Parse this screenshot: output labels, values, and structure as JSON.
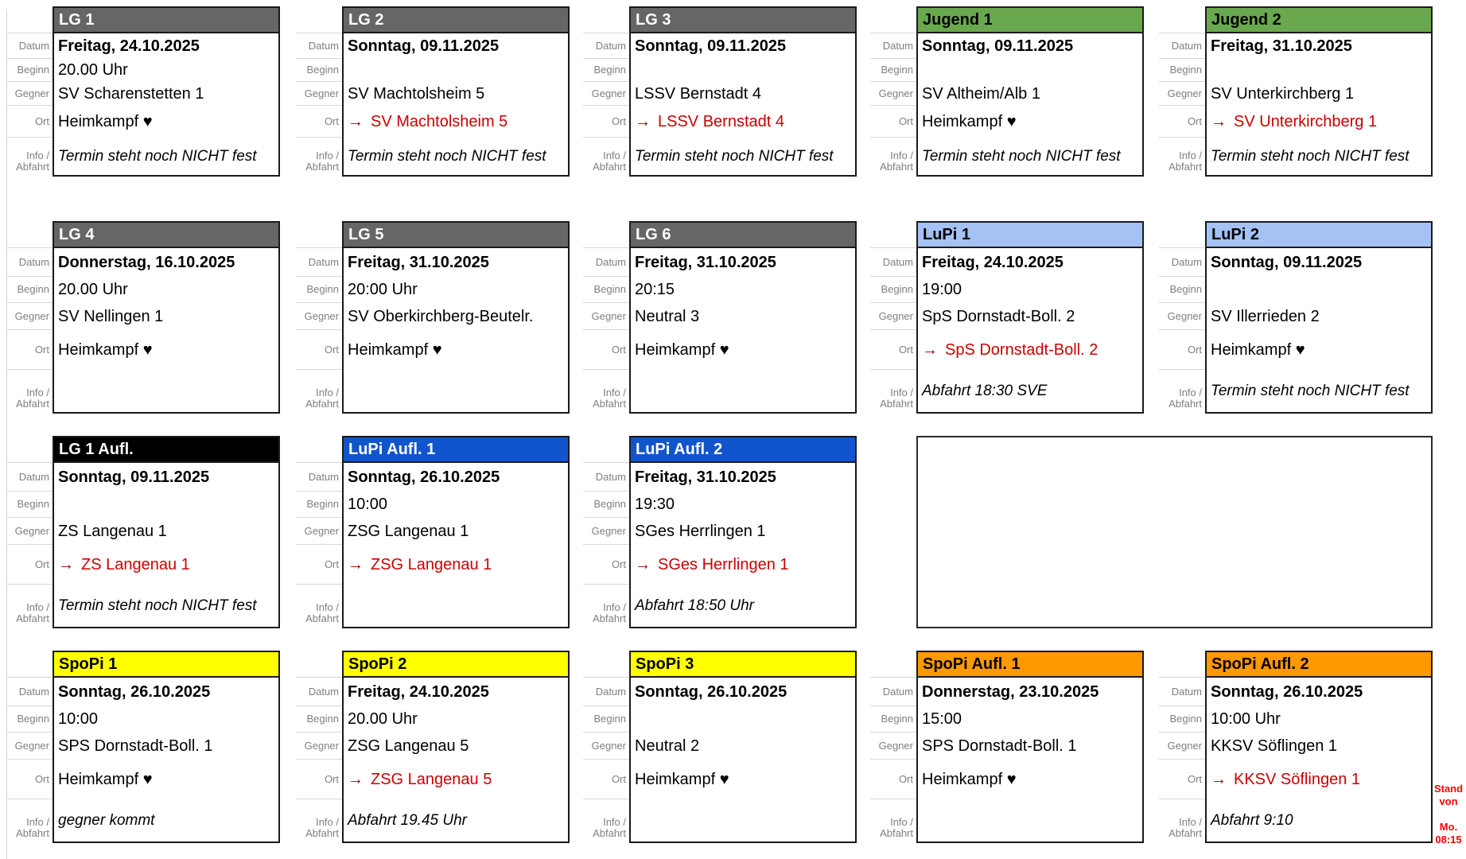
{
  "sheet": {
    "background": "#ffffff",
    "gridline_color": "#d4d4d4"
  },
  "labels": {
    "datum": "Datum",
    "beginn": "Beginn",
    "gegner": "Gegner",
    "ort": "Ort",
    "info_line1": "Info /",
    "info_line2": "Abfahrt"
  },
  "icons": {
    "away_arrow": "→",
    "home_heart": "♥"
  },
  "colors": {
    "away_text": "#cc0000",
    "away_arrow": "#990000",
    "stand_note": "#ff0000",
    "card_border": "#1a1a1a"
  },
  "header_styles": {
    "gray": {
      "bg": "#666666",
      "fg": "#ffffff"
    },
    "green": {
      "bg": "#6aa84f",
      "fg": "#000000"
    },
    "lightblue": {
      "bg": "#a4c2f4",
      "fg": "#000000"
    },
    "blue": {
      "bg": "#1155cc",
      "fg": "#ffffff"
    },
    "black": {
      "bg": "#000000",
      "fg": "#ffffff"
    },
    "yellow": {
      "bg": "#ffff00",
      "fg": "#000000"
    },
    "orange": {
      "bg": "#ff9900",
      "fg": "#000000"
    }
  },
  "stand_note": "Stand\nvon\n\nMo.\n08:15",
  "cards": [
    {
      "type": "match",
      "row": 0,
      "col": 0,
      "style": "gray",
      "title": "LG 1",
      "datum": "Freitag, 24.10.2025",
      "beginn": "20.00 Uhr",
      "gegner": "SV Scharenstetten 1",
      "ort": "Heimkampf ♥",
      "away": false,
      "info": "Termin steht noch NICHT fest"
    },
    {
      "type": "match",
      "row": 0,
      "col": 1,
      "style": "gray",
      "title": "LG 2",
      "datum": "Sonntag, 09.11.2025",
      "beginn": "",
      "gegner": "SV Machtolsheim 5",
      "ort": "SV Machtolsheim 5",
      "away": true,
      "info": "Termin steht noch NICHT fest"
    },
    {
      "type": "match",
      "row": 0,
      "col": 2,
      "style": "gray",
      "title": "LG 3",
      "datum": "Sonntag, 09.11.2025",
      "beginn": "",
      "gegner": "LSSV Bernstadt 4",
      "ort": "LSSV Bernstadt 4",
      "away": true,
      "info": "Termin steht noch NICHT fest"
    },
    {
      "type": "match",
      "row": 0,
      "col": 3,
      "style": "green",
      "title": "Jugend 1",
      "datum": "Sonntag, 09.11.2025",
      "beginn": "",
      "gegner": "SV Altheim/Alb 1",
      "ort": "Heimkampf ♥",
      "away": false,
      "info": "Termin steht noch NICHT fest"
    },
    {
      "type": "match",
      "row": 0,
      "col": 4,
      "style": "green",
      "title": "Jugend 2",
      "datum": "Freitag, 31.10.2025",
      "beginn": "",
      "gegner": "SV Unterkirchberg 1",
      "ort": "SV Unterkirchberg 1",
      "away": true,
      "info": "Termin steht noch NICHT fest"
    },
    {
      "type": "match",
      "row": 1,
      "col": 0,
      "style": "gray",
      "title": "LG 4",
      "datum": "Donnerstag, 16.10.2025",
      "beginn": "20.00 Uhr",
      "gegner": "SV Nellingen 1",
      "ort": "Heimkampf ♥",
      "away": false,
      "info": ""
    },
    {
      "type": "match",
      "row": 1,
      "col": 1,
      "style": "gray",
      "title": "LG 5",
      "datum": "Freitag, 31.10.2025",
      "beginn": "20:00 Uhr",
      "gegner": "SV Oberkirchberg-Beutelr.",
      "ort": "Heimkampf ♥",
      "away": false,
      "info": ""
    },
    {
      "type": "match",
      "row": 1,
      "col": 2,
      "style": "gray",
      "title": "LG 6",
      "datum": "Freitag, 31.10.2025",
      "beginn": "20:15",
      "gegner": "Neutral 3",
      "ort": "Heimkampf ♥",
      "away": false,
      "info": ""
    },
    {
      "type": "match",
      "row": 1,
      "col": 3,
      "style": "lightblue",
      "title": "LuPi 1",
      "datum": "Freitag, 24.10.2025",
      "beginn": "19:00",
      "gegner": "SpS Dornstadt-Boll. 2",
      "ort": "SpS Dornstadt-Boll. 2",
      "away": true,
      "info": "Abfahrt 18:30 SVE"
    },
    {
      "type": "match",
      "row": 1,
      "col": 4,
      "style": "lightblue",
      "title": "LuPi 2",
      "datum": "Sonntag, 09.11.2025",
      "beginn": "",
      "gegner": "SV Illerrieden 2",
      "ort": "Heimkampf ♥",
      "away": false,
      "info": "Termin steht noch NICHT fest"
    },
    {
      "type": "match",
      "row": 2,
      "col": 0,
      "style": "black",
      "title": "LG 1 Aufl.",
      "datum": "Sonntag, 09.11.2025",
      "beginn": "",
      "gegner": "ZS Langenau 1",
      "ort": "ZS Langenau 1",
      "away": true,
      "info": "Termin steht noch NICHT fest"
    },
    {
      "type": "match",
      "row": 2,
      "col": 1,
      "style": "blue",
      "title": "LuPi Aufl. 1",
      "datum": "Sonntag, 26.10.2025",
      "beginn": "10:00",
      "gegner": "ZSG Langenau 1",
      "ort": "ZSG Langenau 1",
      "away": true,
      "info": ""
    },
    {
      "type": "match",
      "row": 2,
      "col": 2,
      "style": "blue",
      "title": "LuPi Aufl. 2",
      "datum": "Freitag, 31.10.2025",
      "beginn": "19:30",
      "gegner": "SGes Herrlingen 1",
      "ort": "SGes Herrlingen 1",
      "away": true,
      "info": "Abfahrt 18:50 Uhr"
    },
    {
      "type": "empty",
      "row": 2,
      "col": 3,
      "span": 2
    },
    {
      "type": "match",
      "row": 3,
      "col": 0,
      "style": "yellow",
      "title": "SpoPi 1",
      "datum": "Sonntag, 26.10.2025",
      "beginn": "10:00",
      "gegner": "SPS Dornstadt-Boll. 1",
      "ort": "Heimkampf ♥",
      "away": false,
      "info": "gegner kommt"
    },
    {
      "type": "match",
      "row": 3,
      "col": 1,
      "style": "yellow",
      "title": "SpoPi 2",
      "datum": "Freitag, 24.10.2025",
      "beginn": "20.00 Uhr",
      "gegner": "ZSG Langenau 5",
      "ort": "ZSG Langenau 5",
      "away": true,
      "info": "Abfahrt 19.45 Uhr"
    },
    {
      "type": "match",
      "row": 3,
      "col": 2,
      "style": "yellow",
      "title": "SpoPi 3",
      "datum": "Sonntag, 26.10.2025",
      "beginn": "",
      "gegner": "Neutral 2",
      "ort": "Heimkampf ♥",
      "away": false,
      "info": ""
    },
    {
      "type": "match",
      "row": 3,
      "col": 3,
      "style": "orange",
      "title": "SpoPi Aufl. 1",
      "datum": "Donnerstag, 23.10.2025",
      "beginn": "15:00",
      "gegner": "SPS Dornstadt-Boll. 1",
      "ort": "Heimkampf ♥",
      "away": false,
      "info": ""
    },
    {
      "type": "match",
      "row": 3,
      "col": 4,
      "style": "orange",
      "title": "SpoPi Aufl. 2",
      "datum": "Sonntag, 26.10.2025",
      "beginn": "10:00 Uhr",
      "gegner": "KKSV Söflingen 1",
      "ort": "KKSV Söflingen 1",
      "away": true,
      "info": "Abfahrt 9:10"
    }
  ]
}
